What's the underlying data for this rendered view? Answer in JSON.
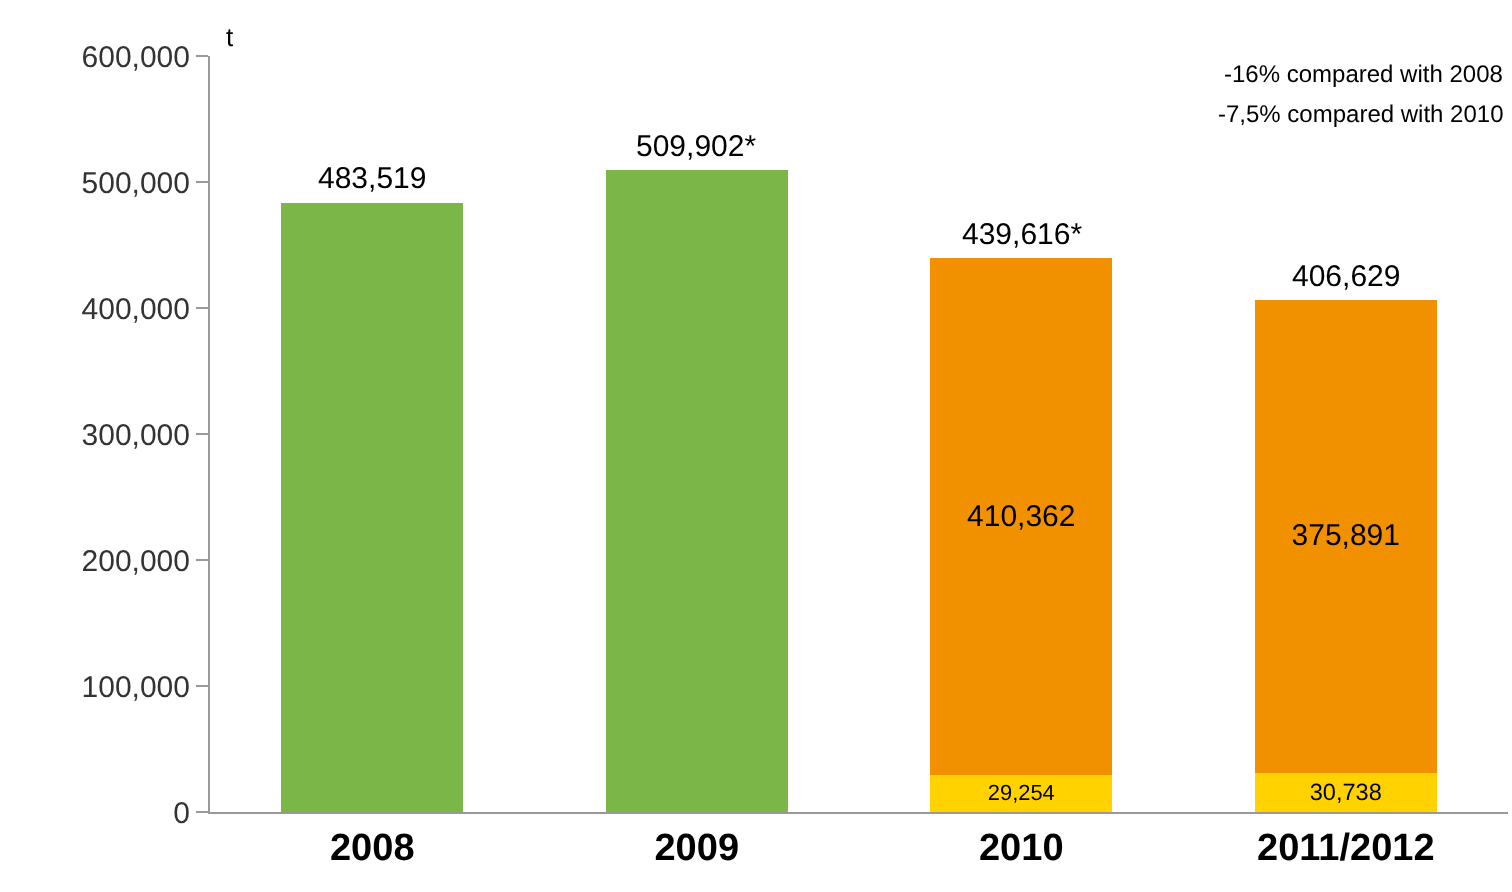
{
  "chart_data": {
    "type": "bar",
    "stacked": true,
    "ylabel": "t",
    "categories": [
      "2008",
      "2009",
      "2010",
      "2011/2012"
    ],
    "series": [
      {
        "color": "#ffd200",
        "values": [
          null,
          null,
          29254,
          30738
        ],
        "value_labels": [
          null,
          null,
          "29,254",
          "30,738"
        ]
      },
      {
        "color": "#f29100",
        "values": [
          null,
          null,
          410362,
          375891
        ],
        "value_labels": [
          null,
          null,
          "410,362",
          "375,891"
        ]
      },
      {
        "color": "#7ab648",
        "values": [
          483519,
          509902,
          null,
          null
        ]
      }
    ],
    "totals": [
      "483,519",
      "509,902*",
      "439,616*",
      "406,629"
    ],
    "ylim": [
      0,
      600000
    ],
    "yticks": [
      {
        "value": 0,
        "label": "0"
      },
      {
        "value": 100000,
        "label": "100,000"
      },
      {
        "value": 200000,
        "label": "200,000"
      },
      {
        "value": 300000,
        "label": "300,000"
      },
      {
        "value": 400000,
        "label": "400,000"
      },
      {
        "value": 500000,
        "label": "500,000"
      },
      {
        "value": 600000,
        "label": "600,000"
      }
    ],
    "annotations": [
      "-16% compared with 2008",
      "-7,5% compared with 2010"
    ]
  }
}
